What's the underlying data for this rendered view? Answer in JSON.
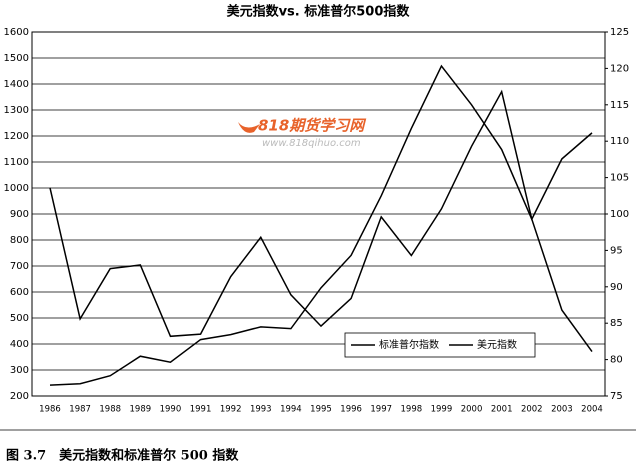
{
  "chart_data": {
    "type": "line",
    "title": "美元指数vs. 标准普尔500指数",
    "categories": [
      "1986",
      "1987",
      "1988",
      "1989",
      "1990",
      "1991",
      "1992",
      "1993",
      "1994",
      "1995",
      "1996",
      "1997",
      "1998",
      "1999",
      "2000",
      "2001",
      "2002",
      "2003",
      "2004"
    ],
    "series": [
      {
        "name": "标准普尔指数",
        "color": "#000000",
        "values": [
          242,
          247,
          278,
          353,
          330,
          417,
          436,
          466,
          459,
          616,
          741,
          970,
          1229,
          1469,
          1320,
          1148,
          880,
          1112,
          1212
        ]
      },
      {
        "name": "美元指数",
        "color": "#000000",
        "axis": "y2",
        "values": [
          103.6,
          85.6,
          92.5,
          93.0,
          83.2,
          83.5,
          91.4,
          96.8,
          88.9,
          84.6,
          88.4,
          99.6,
          94.3,
          100.7,
          109.3,
          116.8,
          99.3,
          86.8,
          81.1
        ]
      }
    ],
    "ylim": [
      200,
      1600
    ],
    "yticks": [
      200,
      300,
      400,
      500,
      600,
      700,
      800,
      900,
      1000,
      1100,
      1200,
      1300,
      1400,
      1500,
      1600
    ],
    "y2lim": [
      75,
      125
    ],
    "y2ticks": [
      75,
      80,
      85,
      90,
      95,
      100,
      105,
      110,
      115,
      120,
      125
    ],
    "grid": true,
    "legend": "lower right",
    "watermark_text": "818期货学习网",
    "watermark_url": "www.818qihuo.com",
    "caption": "图 3.7　美元指数和标准普尔 500 指数"
  }
}
